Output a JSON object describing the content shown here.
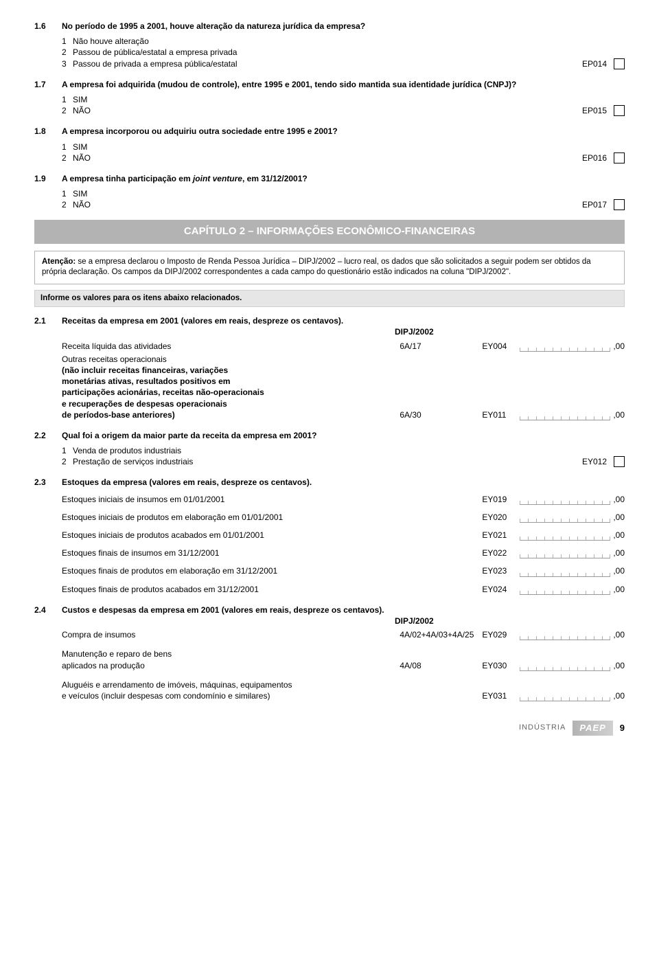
{
  "q16": {
    "num": "1.6",
    "text": "No período de 1995 a 2001, houve alteração da natureza jurídica da empresa?",
    "options": [
      {
        "n": "1",
        "t": "Não houve alteração"
      },
      {
        "n": "2",
        "t": "Passou de pública/estatal a empresa privada"
      },
      {
        "n": "3",
        "t": "Passou de privada a empresa pública/estatal"
      }
    ],
    "code": "EP014"
  },
  "q17": {
    "num": "1.7",
    "text": "A empresa foi adquirida (mudou de controle), entre 1995 e 2001, tendo sido mantida sua identidade jurídica (CNPJ)?",
    "options": [
      {
        "n": "1",
        "t": "SIM"
      },
      {
        "n": "2",
        "t": "NÃO"
      }
    ],
    "code": "EP015"
  },
  "q18": {
    "num": "1.8",
    "text": "A empresa incorporou ou adquiriu outra sociedade entre 1995 e 2001?",
    "options": [
      {
        "n": "1",
        "t": "SIM"
      },
      {
        "n": "2",
        "t": "NÃO"
      }
    ],
    "code": "EP016"
  },
  "q19": {
    "num": "1.9",
    "text_pre": "A empresa tinha participação em ",
    "text_em": "joint venture",
    "text_post": ", em 31/12/2001?",
    "options": [
      {
        "n": "1",
        "t": "SIM"
      },
      {
        "n": "2",
        "t": "NÃO"
      }
    ],
    "code": "EP017"
  },
  "chapter2": {
    "title": "CAPÍTULO 2 – INFORMAÇÕES ECONÔMICO-FINANCEIRAS",
    "note_lead": "Atenção:",
    "note_text": "se a empresa declarou o Imposto de Renda Pessoa Jurídica – DIPJ/2002 – lucro real, os dados que são solicitados a seguir podem ser obtidos da própria declaração. Os campos da DIPJ/2002 correspondentes a cada campo do questionário estão indicados na coluna \"DIPJ/2002\".",
    "info_bar": "Informe os valores para os itens abaixo relacionados."
  },
  "q21": {
    "num": "2.1",
    "text": "Receitas da empresa em 2001 (valores em reais, despreze os centavos).",
    "dipj_header": "DIPJ/2002",
    "rows": [
      {
        "label": "Receita líquida das atividades",
        "dipj": "6A/17",
        "code": "EY004",
        "digits": 11,
        "suffix": ",00"
      },
      {
        "label_lines": [
          "Outras receitas operacionais",
          "(não incluir receitas financeiras, variações",
          "monetárias ativas, resultados positivos em",
          "participações acionárias, receitas não-operacionais",
          "e recuperações de despesas operacionais",
          "de períodos-base anteriores)"
        ],
        "dipj": "6A/30",
        "code": "EY011",
        "digits": 11,
        "suffix": ",00"
      }
    ]
  },
  "q22": {
    "num": "2.2",
    "text": "Qual foi a origem da maior parte da receita da empresa em 2001?",
    "options": [
      {
        "n": "1",
        "t": "Venda de produtos industriais"
      },
      {
        "n": "2",
        "t": "Prestação de serviços industriais"
      }
    ],
    "code": "EY012"
  },
  "q23": {
    "num": "2.3",
    "text": "Estoques da empresa (valores em reais, despreze os centavos).",
    "rows": [
      {
        "label": "Estoques iniciais de insumos em 01/01/2001",
        "code": "EY019",
        "digits": 11,
        "suffix": ",00"
      },
      {
        "label": "Estoques iniciais de produtos em elaboração em 01/01/2001",
        "code": "EY020",
        "digits": 11,
        "suffix": ",00"
      },
      {
        "label": "Estoques iniciais de produtos acabados em 01/01/2001",
        "code": "EY021",
        "digits": 11,
        "suffix": ",00"
      },
      {
        "label": "Estoques finais de insumos em 31/12/2001",
        "code": "EY022",
        "digits": 11,
        "suffix": ",00"
      },
      {
        "label": "Estoques finais de produtos em elaboração em 31/12/2001",
        "code": "EY023",
        "digits": 11,
        "suffix": ",00"
      },
      {
        "label": "Estoques finais de produtos acabados em 31/12/2001",
        "code": "EY024",
        "digits": 11,
        "suffix": ",00"
      }
    ]
  },
  "q24": {
    "num": "2.4",
    "text": "Custos e despesas da empresa em 2001 (valores em reais, despreze os centavos).",
    "dipj_header": "DIPJ/2002",
    "rows": [
      {
        "label": "Compra de insumos",
        "dipj": "4A/02+4A/03+4A/25",
        "code": "EY029",
        "digits": 11,
        "suffix": ",00"
      },
      {
        "label_lines": [
          "Manutenção e reparo de bens",
          "aplicados na produção"
        ],
        "dipj": "4A/08",
        "code": "EY030",
        "digits": 11,
        "suffix": ",00"
      },
      {
        "label_lines": [
          "Aluguéis e arrendamento de imóveis, máquinas, equipamentos",
          "e veículos (incluir despesas com condomínio e similares)"
        ],
        "dipj": "",
        "code": "EY031",
        "digits": 11,
        "suffix": ",00"
      }
    ]
  },
  "footer": {
    "industria": "INDÚSTRIA",
    "paep": "PAEP",
    "page": "9"
  },
  "style": {
    "digit_width": 12,
    "banner_bg": "#b3b3b3",
    "banner_fg": "#ffffff"
  }
}
